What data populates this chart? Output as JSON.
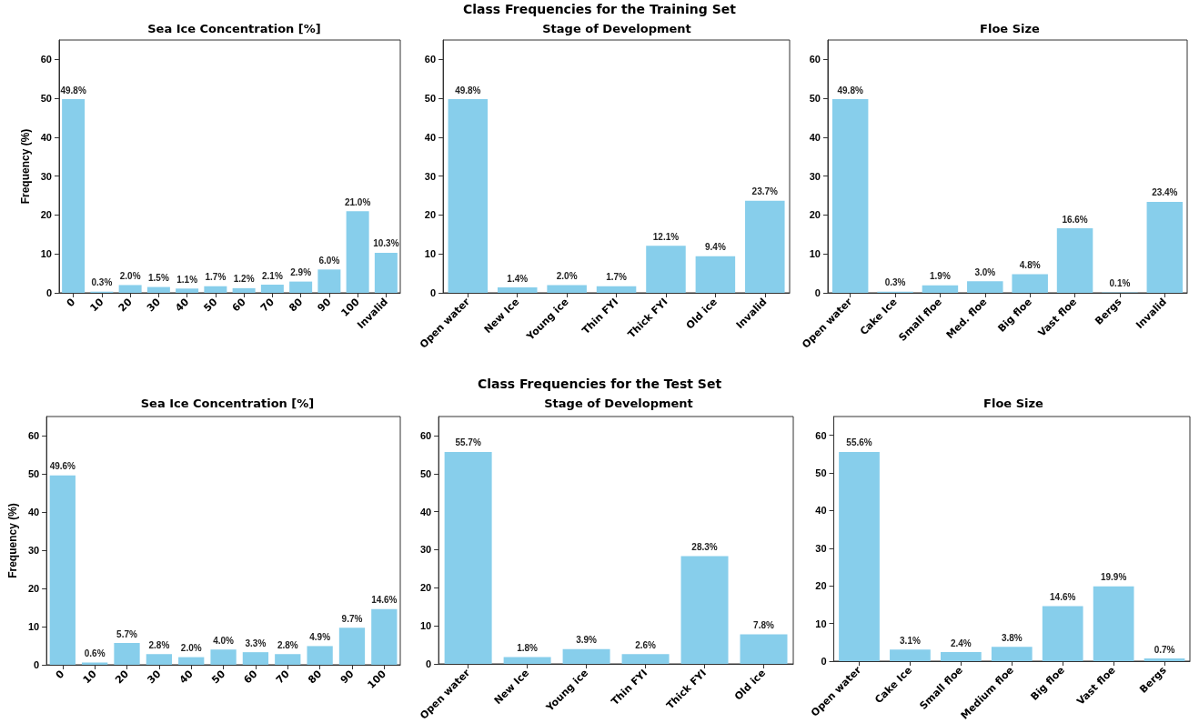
{
  "chart_data": [
    {
      "type": "bar",
      "title": "Sea Ice Concentration [%]",
      "annotations": [
        "Class Frequencies for the Training Set"
      ],
      "ylabel": "Frequency (%)",
      "categories": [
        "0",
        "10",
        "20",
        "30",
        "40",
        "50",
        "60",
        "70",
        "80",
        "90",
        "100",
        "Invalid"
      ],
      "values": [
        49.8,
        0.3,
        2.0,
        1.5,
        1.1,
        1.7,
        1.2,
        2.1,
        2.9,
        6.0,
        21.0,
        10.3
      ],
      "value_labels": [
        "49.8%",
        "0.3%",
        "2.0%",
        "1.5%",
        "1.1%",
        "1.7%",
        "1.2%",
        "2.1%",
        "2.9%",
        "6.0%",
        "21.0%",
        "10.3%"
      ],
      "color": "#87ceeb",
      "ylim": [
        0,
        65
      ],
      "yticks": [
        0,
        10,
        20,
        30,
        40,
        50,
        60
      ]
    },
    {
      "type": "bar",
      "title": "Stage of Development",
      "categories": [
        "Open water",
        "New Ice",
        "Young ice",
        "Thin FYI",
        "Thick FYI",
        "Old ice",
        "Invalid"
      ],
      "values": [
        49.8,
        1.4,
        2.0,
        1.7,
        12.1,
        9.4,
        23.7
      ],
      "value_labels": [
        "49.8%",
        "1.4%",
        "2.0%",
        "1.7%",
        "12.1%",
        "9.4%",
        "23.7%"
      ],
      "color": "#87ceeb",
      "ylim": [
        0,
        65
      ],
      "yticks": [
        0,
        10,
        20,
        30,
        40,
        50,
        60
      ]
    },
    {
      "type": "bar",
      "title": "Floe Size",
      "categories": [
        "Open water",
        "Cake Ice",
        "Small floe",
        "Med. floe",
        "Big floe",
        "Vast floe",
        "Bergs",
        "Invalid"
      ],
      "values": [
        49.8,
        0.3,
        1.9,
        3.0,
        4.8,
        16.6,
        0.1,
        23.4
      ],
      "value_labels": [
        "49.8%",
        "0.3%",
        "1.9%",
        "3.0%",
        "4.8%",
        "16.6%",
        "0.1%",
        "23.4%"
      ],
      "color": "#87ceeb",
      "ylim": [
        0,
        65
      ],
      "yticks": [
        0,
        10,
        20,
        30,
        40,
        50,
        60
      ]
    },
    {
      "type": "bar",
      "title": "Sea Ice Concentration [%]",
      "annotations": [
        "Class Frequencies for the Test Set"
      ],
      "ylabel": "Frequency (%)",
      "categories": [
        "0",
        "10",
        "20",
        "30",
        "40",
        "50",
        "60",
        "70",
        "80",
        "90",
        "100"
      ],
      "values": [
        49.6,
        0.6,
        5.7,
        2.8,
        2.0,
        4.0,
        3.3,
        2.8,
        4.9,
        9.7,
        14.6
      ],
      "value_labels": [
        "49.6%",
        "0.6%",
        "5.7%",
        "2.8%",
        "2.0%",
        "4.0%",
        "3.3%",
        "2.8%",
        "4.9%",
        "9.7%",
        "14.6%"
      ],
      "color": "#87ceeb",
      "ylim": [
        0,
        65
      ],
      "yticks": [
        0,
        10,
        20,
        30,
        40,
        50,
        60
      ]
    },
    {
      "type": "bar",
      "title": "Stage of Development",
      "categories": [
        "Open water",
        "New Ice",
        "Young ice",
        "Thin FYI",
        "Thick FYI",
        "Old ice"
      ],
      "values": [
        55.7,
        1.8,
        3.9,
        2.6,
        28.3,
        7.8
      ],
      "value_labels": [
        "55.7%",
        "1.8%",
        "3.9%",
        "2.6%",
        "28.3%",
        "7.8%"
      ],
      "color": "#87ceeb",
      "ylim": [
        0,
        65
      ],
      "yticks": [
        0,
        10,
        20,
        30,
        40,
        50,
        60
      ]
    },
    {
      "type": "bar",
      "title": "Floe Size",
      "categories": [
        "Open water",
        "Cake Ice",
        "Small floe",
        "Medium floe",
        "Big floe",
        "Vast floe",
        "Bergs"
      ],
      "values": [
        55.6,
        3.1,
        2.4,
        3.8,
        14.6,
        19.9,
        0.7
      ],
      "value_labels": [
        "55.6%",
        "3.1%",
        "2.4%",
        "3.8%",
        "14.6%",
        "19.9%",
        "0.7%"
      ],
      "color": "#87ceeb",
      "ylim": [
        0,
        65
      ],
      "yticks": [
        0,
        10,
        20,
        30,
        40,
        50,
        60
      ]
    }
  ]
}
